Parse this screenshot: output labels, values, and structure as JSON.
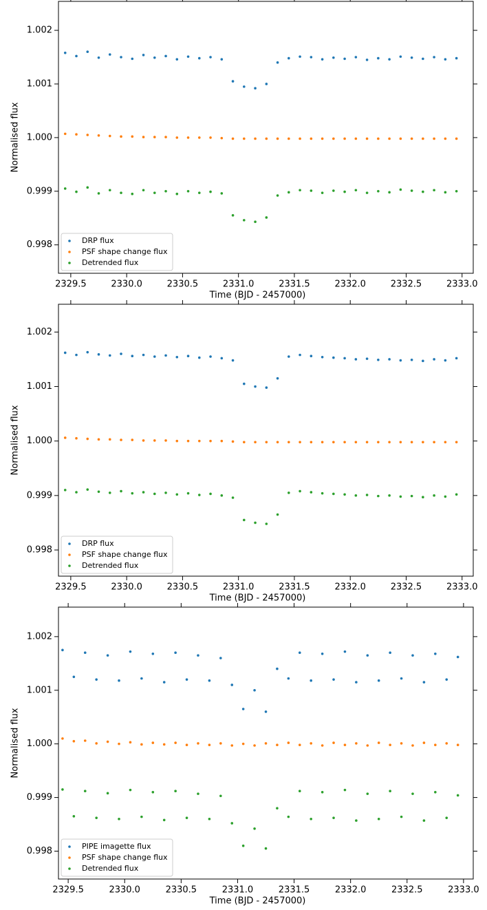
{
  "chart_data": [
    {
      "type": "scatter",
      "xlabel": "Time (BJD - 2457000)",
      "ylabel": "Normalised flux",
      "xlim": [
        2329.39,
        2333.1
      ],
      "ylim": [
        0.99747,
        1.00254
      ],
      "xticks": [
        2329.5,
        {
          "value": 2330.0,
          "label": "2330.0"
        },
        2330.5,
        {
          "value": 2331.0,
          "label": "2331.0"
        },
        2331.5,
        {
          "value": 2332.0,
          "label": "2332.0"
        },
        2332.5,
        {
          "value": 2333.0,
          "label": "2333.0"
        }
      ],
      "yticks": [
        0.998,
        0.999,
        {
          "value": 1.0,
          "label": "1.000"
        },
        1.001,
        1.002
      ],
      "legend": "lower left",
      "x": [
        2329.45,
        2329.55,
        2329.65,
        2329.75,
        2329.85,
        2329.95,
        2330.05,
        2330.15,
        2330.25,
        2330.35,
        2330.45,
        2330.55,
        2330.65,
        2330.75,
        2330.85,
        2330.95,
        2331.05,
        2331.15,
        2331.25,
        2331.35,
        2331.45,
        2331.55,
        2331.65,
        2331.75,
        2331.85,
        2331.95,
        2332.05,
        2332.15,
        2332.25,
        2332.35,
        2332.45,
        2332.55,
        2332.65,
        2332.75,
        2332.85,
        2332.95
      ],
      "series": [
        {
          "name": "DRP flux",
          "color": "#1f77b4",
          "values": [
            1.00158,
            1.00152,
            1.0016,
            1.00149,
            1.00155,
            1.0015,
            1.00147,
            1.00154,
            1.00149,
            1.00152,
            1.00146,
            1.00151,
            1.00148,
            1.0015,
            1.00146,
            1.00105,
            1.00095,
            1.00092,
            1.001,
            1.0014,
            1.00148,
            1.00151,
            1.0015,
            1.00146,
            1.00149,
            1.00147,
            1.0015,
            1.00145,
            1.00148,
            1.00146,
            1.00151,
            1.00149,
            1.00147,
            1.0015,
            1.00146,
            1.00148
          ]
        },
        {
          "name": "PSF shape change flux",
          "color": "#ff7f0e",
          "values": [
            1.00007,
            1.00006,
            1.00005,
            1.00004,
            1.00003,
            1.00002,
            1.00002,
            1.00001,
            1.00001,
            1.00001,
            1.0,
            1.0,
            1.0,
            1.0,
            0.99999,
            0.99998,
            0.99998,
            0.99998,
            0.99998,
            0.99998,
            0.99998,
            0.99998,
            0.99998,
            0.99998,
            0.99998,
            0.99998,
            0.99998,
            0.99998,
            0.99998,
            0.99998,
            0.99998,
            0.99998,
            0.99998,
            0.99998,
            0.99998,
            0.99998
          ]
        },
        {
          "name": "Detrended flux",
          "color": "#2ca02c",
          "values": [
            0.99905,
            0.99899,
            0.99907,
            0.99896,
            0.99902,
            0.99897,
            0.99895,
            0.99902,
            0.99897,
            0.999,
            0.99895,
            0.999,
            0.99897,
            0.99899,
            0.99896,
            0.99855,
            0.99846,
            0.99843,
            0.99851,
            0.99892,
            0.99898,
            0.99902,
            0.99901,
            0.99897,
            0.99901,
            0.99899,
            0.99902,
            0.99897,
            0.999,
            0.99898,
            0.99903,
            0.99901,
            0.99899,
            0.99902,
            0.99898,
            0.999
          ]
        }
      ]
    },
    {
      "type": "scatter",
      "xlabel": "Time (BJD - 2457000)",
      "ylabel": "Normalised flux",
      "xlim": [
        2329.39,
        2333.1
      ],
      "ylim": [
        0.99752,
        1.00251
      ],
      "xticks": [
        2329.5,
        {
          "value": 2330.0,
          "label": "2330.0"
        },
        2330.5,
        {
          "value": 2331.0,
          "label": "2331.0"
        },
        2331.5,
        {
          "value": 2332.0,
          "label": "2332.0"
        },
        2332.5,
        {
          "value": 2333.0,
          "label": "2333.0"
        }
      ],
      "yticks": [
        0.998,
        0.999,
        {
          "value": 1.0,
          "label": "1.000"
        },
        1.001,
        1.002
      ],
      "legend": "lower left",
      "x": [
        2329.45,
        2329.55,
        2329.65,
        2329.75,
        2329.85,
        2329.95,
        2330.05,
        2330.15,
        2330.25,
        2330.35,
        2330.45,
        2330.55,
        2330.65,
        2330.75,
        2330.85,
        2330.95,
        2331.05,
        2331.15,
        2331.25,
        2331.35,
        2331.45,
        2331.55,
        2331.65,
        2331.75,
        2331.85,
        2331.95,
        2332.05,
        2332.15,
        2332.25,
        2332.35,
        2332.45,
        2332.55,
        2332.65,
        2332.75,
        2332.85,
        2332.95
      ],
      "series": [
        {
          "name": "DRP flux",
          "color": "#1f77b4",
          "values": [
            1.00162,
            1.00158,
            1.00163,
            1.00159,
            1.00157,
            1.0016,
            1.00156,
            1.00158,
            1.00155,
            1.00157,
            1.00154,
            1.00156,
            1.00153,
            1.00155,
            1.00152,
            1.00148,
            1.00105,
            1.001,
            1.00098,
            1.00115,
            1.00155,
            1.00158,
            1.00156,
            1.00154,
            1.00153,
            1.00152,
            1.0015,
            1.00151,
            1.00149,
            1.0015,
            1.00148,
            1.00149,
            1.00147,
            1.0015,
            1.00148,
            1.00152
          ]
        },
        {
          "name": "PSF shape change flux",
          "color": "#ff7f0e",
          "values": [
            1.00006,
            1.00005,
            1.00004,
            1.00003,
            1.00003,
            1.00002,
            1.00002,
            1.00001,
            1.00001,
            1.00001,
            1.0,
            1.0,
            1.0,
            1.0,
            1.0,
            0.99999,
            0.99998,
            0.99998,
            0.99998,
            0.99998,
            0.99998,
            0.99998,
            0.99998,
            0.99998,
            0.99998,
            0.99998,
            0.99998,
            0.99998,
            0.99998,
            0.99998,
            0.99998,
            0.99998,
            0.99998,
            0.99998,
            0.99998,
            0.99998
          ]
        },
        {
          "name": "Detrended flux",
          "color": "#2ca02c",
          "values": [
            0.9991,
            0.99906,
            0.99911,
            0.99907,
            0.99905,
            0.99908,
            0.99904,
            0.99906,
            0.99903,
            0.99905,
            0.99902,
            0.99904,
            0.99901,
            0.99903,
            0.999,
            0.99896,
            0.99855,
            0.9985,
            0.99848,
            0.99865,
            0.99905,
            0.99908,
            0.99906,
            0.99904,
            0.99903,
            0.99902,
            0.999,
            0.99901,
            0.99899,
            0.999,
            0.99898,
            0.99899,
            0.99897,
            0.999,
            0.99898,
            0.99902
          ]
        }
      ]
    },
    {
      "type": "scatter",
      "xlabel": "Time (BJD - 2457000)",
      "ylabel": "Normalised flux",
      "xlim": [
        2329.414,
        2333.086
      ],
      "ylim": [
        0.99748,
        1.00255
      ],
      "xticks": [
        2329.5,
        {
          "value": 2330.0,
          "label": "2330.0"
        },
        2330.5,
        {
          "value": 2331.0,
          "label": "2331.0"
        },
        2331.5,
        {
          "value": 2332.0,
          "label": "2332.0"
        },
        2332.5,
        {
          "value": 2333.0,
          "label": "2333.0"
        }
      ],
      "yticks": [
        0.998,
        0.999,
        {
          "value": 1.0,
          "label": "1.000"
        },
        1.001,
        1.002
      ],
      "legend": "lower left",
      "x": [
        2329.45,
        2329.55,
        2329.65,
        2329.75,
        2329.85,
        2329.95,
        2330.05,
        2330.15,
        2330.25,
        2330.35,
        2330.45,
        2330.55,
        2330.65,
        2330.75,
        2330.85,
        2330.95,
        2331.05,
        2331.15,
        2331.25,
        2331.35,
        2331.45,
        2331.55,
        2331.65,
        2331.75,
        2331.85,
        2331.95,
        2332.05,
        2332.15,
        2332.25,
        2332.35,
        2332.45,
        2332.55,
        2332.65,
        2332.75,
        2332.85,
        2332.95
      ],
      "series": [
        {
          "name": "PIPE imagette flux",
          "color": "#1f77b4",
          "values": [
            1.00175,
            1.00125,
            1.0017,
            1.0012,
            1.00165,
            1.00118,
            1.00172,
            1.00122,
            1.00168,
            1.00115,
            1.0017,
            1.0012,
            1.00165,
            1.00118,
            1.0016,
            1.0011,
            1.00065,
            1.001,
            1.0006,
            1.0014,
            1.00122,
            1.0017,
            1.00118,
            1.00168,
            1.0012,
            1.00172,
            1.00115,
            1.00165,
            1.00118,
            1.0017,
            1.00122,
            1.00165,
            1.00115,
            1.00168,
            1.0012,
            1.00162
          ]
        },
        {
          "name": "PSF shape change flux",
          "color": "#ff7f0e",
          "values": [
            1.0001,
            1.00005,
            1.00006,
            1.00001,
            1.00004,
            1.0,
            1.00003,
            0.99999,
            1.00002,
            0.99999,
            1.00002,
            0.99998,
            1.00001,
            0.99998,
            1.00001,
            0.99997,
            1.0,
            0.99997,
            1.00001,
            0.99998,
            1.00002,
            0.99998,
            1.00001,
            0.99997,
            1.00002,
            0.99998,
            1.00001,
            0.99997,
            1.00002,
            0.99998,
            1.00001,
            0.99997,
            1.00002,
            0.99998,
            1.00001,
            0.99998
          ]
        },
        {
          "name": "Detrended flux",
          "color": "#2ca02c",
          "values": [
            0.99915,
            0.99865,
            0.99912,
            0.99862,
            0.99908,
            0.9986,
            0.99914,
            0.99864,
            0.9991,
            0.99858,
            0.99912,
            0.99862,
            0.99907,
            0.9986,
            0.99903,
            0.99852,
            0.9981,
            0.99842,
            0.99805,
            0.9988,
            0.99864,
            0.99912,
            0.9986,
            0.9991,
            0.99862,
            0.99914,
            0.99857,
            0.99907,
            0.9986,
            0.99912,
            0.99864,
            0.99907,
            0.99857,
            0.9991,
            0.99862,
            0.99904
          ]
        }
      ]
    }
  ]
}
